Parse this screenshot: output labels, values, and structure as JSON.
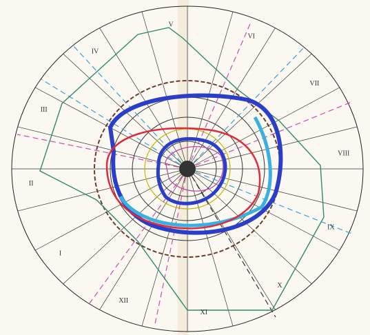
{
  "labels": [
    "I",
    "II",
    "III",
    "IV",
    "V",
    "VI",
    "VII",
    "VIII",
    "IX",
    "X",
    "XI",
    "XII"
  ]
}
